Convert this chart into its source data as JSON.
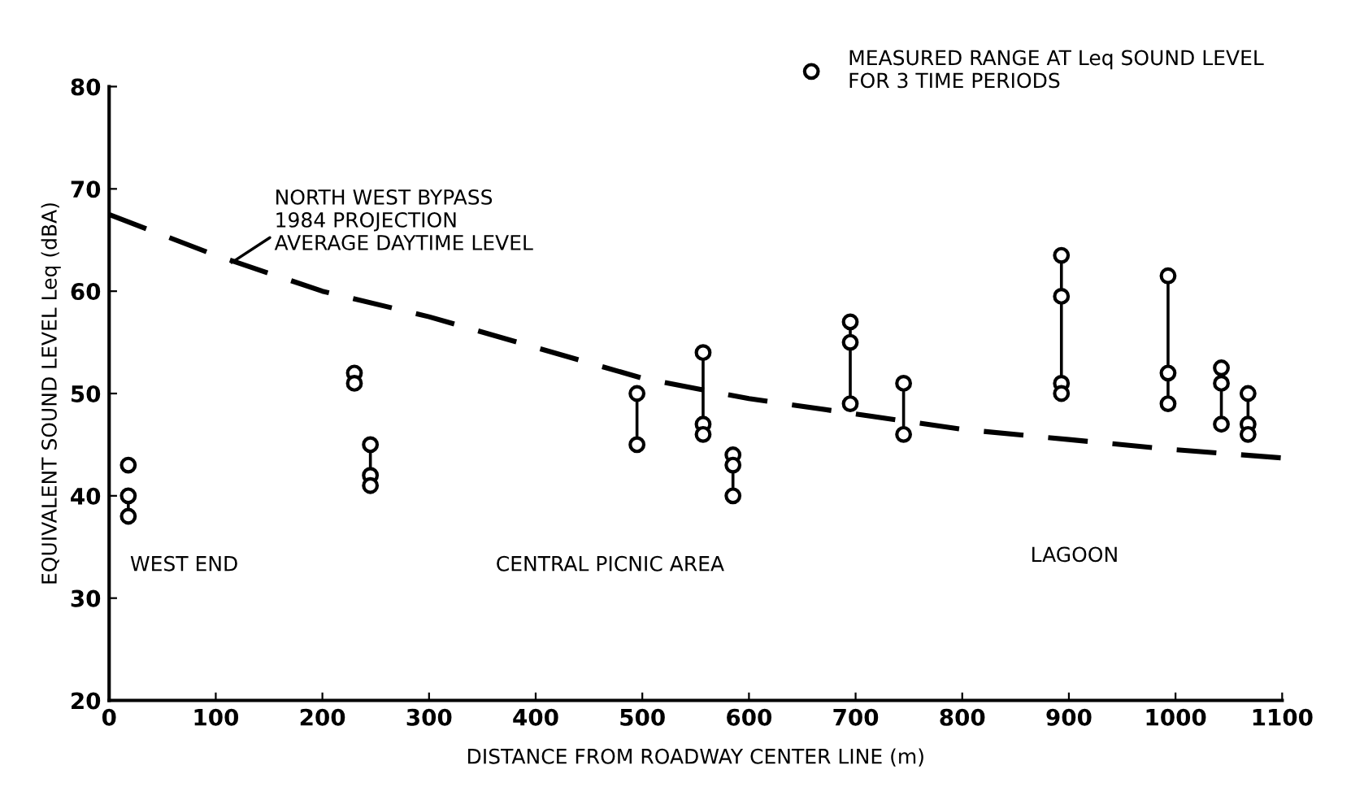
{
  "chart_data": {
    "type": "scatter",
    "xlabel": "DISTANCE FROM ROADWAY CENTER LINE (m)",
    "ylabel": "EQUIVALENT SOUND LEVEL Leq (dBA)",
    "xlim": [
      0,
      1100
    ],
    "xticks": [
      0,
      100,
      200,
      300,
      400,
      500,
      600,
      700,
      800,
      900,
      1000,
      1100
    ],
    "ylim": [
      20,
      80
    ],
    "yticks": [
      20,
      30,
      40,
      50,
      60,
      70,
      80
    ],
    "grid": false,
    "legend": "top right",
    "marker": "circle",
    "series": [
      {
        "type": "line",
        "name": "MEASURED RANGE AT Leq SOUND LEVEL\nFOR 3 TIME PERIODS",
        "color": "#000000",
        "x": [
          18,
          18
        ],
        "values": [
          40,
          38
        ]
      },
      {
        "color": "#000000",
        "x": [
          18,
          230,
          230
        ],
        "values": [
          43,
          52,
          51
        ]
      },
      {
        "type": "line",
        "color": "#000000",
        "x": [
          245,
          245,
          245
        ],
        "values": [
          45,
          42,
          41
        ]
      },
      {
        "type": "line",
        "color": "#000000",
        "x": [
          495,
          495
        ],
        "values": [
          50,
          45
        ]
      },
      {
        "type": "line",
        "color": "#000000",
        "x": [
          557,
          557,
          557
        ],
        "values": [
          54,
          47,
          46
        ]
      },
      {
        "type": "line",
        "color": "#000000",
        "x": [
          585,
          585,
          585
        ],
        "values": [
          44,
          43,
          40
        ]
      },
      {
        "type": "line",
        "color": "#000000",
        "x": [
          695,
          695,
          695
        ],
        "values": [
          57,
          55,
          49
        ]
      },
      {
        "type": "line",
        "color": "#000000",
        "x": [
          745,
          745
        ],
        "values": [
          51,
          46
        ]
      },
      {
        "type": "line",
        "color": "#000000",
        "x": [
          893,
          893,
          893,
          893
        ],
        "values": [
          63.5,
          59.5,
          51,
          50
        ]
      },
      {
        "type": "line",
        "color": "#000000",
        "x": [
          993,
          993,
          993
        ],
        "values": [
          61.5,
          52,
          49
        ]
      },
      {
        "type": "line",
        "color": "#000000",
        "x": [
          1043,
          1043,
          1043
        ],
        "values": [
          52.5,
          51,
          47
        ]
      },
      {
        "type": "line",
        "color": "#000000",
        "x": [
          1068,
          1068,
          1068
        ],
        "values": [
          50,
          47,
          46
        ]
      },
      {
        "type": "line",
        "color": "#000000",
        "marker": "none",
        "line_style": "dashed",
        "x": [
          0,
          100,
          200,
          300,
          400,
          500,
          600,
          700,
          800,
          900,
          1000,
          1100
        ],
        "values": [
          67.5,
          63.5,
          60,
          57.5,
          54.5,
          51.5,
          49.5,
          48,
          46.5,
          45.5,
          44.5,
          43.7
        ]
      }
    ],
    "annotations": [
      {
        "text": "NORTH WEST BYPASS\n1984 PROJECTION\nAVERAGE DAYTIME LEVEL",
        "x": 115,
        "y": 62.8
      },
      "WEST END",
      "CENTRAL PICNIC AREA",
      "LAGOON"
    ]
  }
}
